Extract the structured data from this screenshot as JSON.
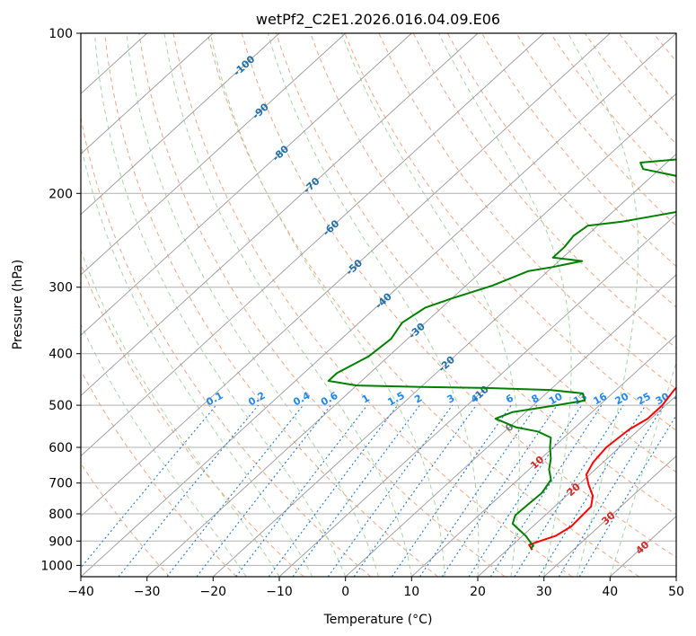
{
  "chart_data": {
    "type": "line",
    "title": "wetPf2_C2E1.2026.016.04.09.E06",
    "xlabel": "Temperature (°C)",
    "ylabel": "Pressure (hPa)",
    "xlim": [
      -40,
      50
    ],
    "ylim": [
      1050,
      100
    ],
    "x_ticks": [
      "−40",
      "−30",
      "−20",
      "−10",
      "0",
      "10",
      "20",
      "30",
      "40",
      "50"
    ],
    "x_tick_values": [
      -40,
      -30,
      -20,
      -10,
      0,
      10,
      20,
      30,
      40,
      50
    ],
    "y_ticks": [
      "100",
      "200",
      "300",
      "400",
      "500",
      "600",
      "700",
      "800",
      "900",
      "1000"
    ],
    "y_tick_values": [
      100,
      200,
      300,
      400,
      500,
      600,
      700,
      800,
      900,
      1000
    ],
    "colors": {
      "temperature": "#ff0000",
      "dewpoint": "#008000",
      "dry_adiabat": "#f4a582",
      "moist_adiabat": "#a6d5a6",
      "mixing_ratio": "#1f77d4",
      "isotherm": "#999999",
      "isobar": "#b0b0b0",
      "isotherm_label_neg": "#1f6fa8",
      "isotherm_label_pos": "#d62728",
      "isotherm_label_zero": "#777777",
      "mixing_label": "#2288ee"
    },
    "isotherm_labels": [
      "-100",
      "-90",
      "-80",
      "-70",
      "-60",
      "-50",
      "-40",
      "-30",
      "-20",
      "-10",
      "0",
      "10",
      "20",
      "30",
      "40"
    ],
    "isotherm_label_values": [
      -100,
      -90,
      -80,
      -70,
      -60,
      -50,
      -40,
      -30,
      -20,
      -10,
      0,
      10,
      20,
      30,
      40
    ],
    "mixing_ratio_labels": [
      "0.1",
      "0.2",
      "0.4",
      "0.6",
      "1",
      "1.5",
      "2",
      "3",
      "4",
      "6",
      "8",
      "10",
      "13",
      "16",
      "20",
      "25",
      "30",
      "36"
    ],
    "mixing_ratio_values": [
      0.1,
      0.2,
      0.4,
      0.6,
      1,
      1.5,
      2,
      3,
      4,
      6,
      8,
      10,
      13,
      16,
      20,
      25,
      30,
      36
    ],
    "series": [
      {
        "name": "Temperature",
        "points": [
          [
            23.8,
            935
          ],
          [
            22.5,
            915
          ],
          [
            23.5,
            900
          ],
          [
            25.0,
            880
          ],
          [
            25.8,
            845
          ],
          [
            25.5,
            775
          ],
          [
            24.0,
            740
          ],
          [
            21.5,
            705
          ],
          [
            19.5,
            675
          ],
          [
            18.5,
            640
          ],
          [
            18.0,
            600
          ],
          [
            18.5,
            555
          ],
          [
            19.5,
            530
          ],
          [
            19.5,
            500
          ],
          [
            18.8,
            470
          ],
          [
            18.5,
            450
          ],
          [
            17.5,
            430
          ],
          [
            17.2,
            415
          ],
          [
            17.3,
            400
          ],
          [
            15.8,
            370
          ],
          [
            14.5,
            355
          ],
          [
            11.7,
            335
          ],
          [
            8.0,
            315
          ],
          [
            5.5,
            295
          ],
          [
            3.0,
            265
          ],
          [
            1.5,
            245
          ],
          [
            -0.5,
            230
          ],
          [
            -2.3,
            210
          ],
          [
            -3.2,
            195
          ],
          [
            -5.0,
            165
          ],
          [
            -6.5,
            148
          ],
          [
            -8.7,
            135
          ],
          [
            -9.5,
            125
          ],
          [
            -10.1,
            120
          ]
        ]
      },
      {
        "name": "Dew point",
        "points": [
          [
            23.3,
            930
          ],
          [
            23.3,
            920
          ],
          [
            22.3,
            905
          ],
          [
            20.5,
            880
          ],
          [
            16.5,
            835
          ],
          [
            15.5,
            805
          ],
          [
            15.6,
            775
          ],
          [
            15.8,
            730
          ],
          [
            15.0,
            690
          ],
          [
            13.0,
            660
          ],
          [
            11.5,
            630
          ],
          [
            9.5,
            600
          ],
          [
            8.0,
            575
          ],
          [
            5.0,
            560
          ],
          [
            1.0,
            550
          ],
          [
            -3.5,
            530
          ],
          [
            -2.0,
            515
          ],
          [
            3.5,
            500
          ],
          [
            7.0,
            490
          ],
          [
            5.5,
            475
          ],
          [
            0.0,
            468
          ],
          [
            -10.0,
            464
          ],
          [
            -20.0,
            462
          ],
          [
            -30.0,
            459
          ],
          [
            -35.0,
            450
          ],
          [
            -35.0,
            435
          ],
          [
            -33.0,
            405
          ],
          [
            -32.5,
            375
          ],
          [
            -33.5,
            350
          ],
          [
            -32.5,
            328
          ],
          [
            -30.0,
            315
          ],
          [
            -26.0,
            298
          ],
          [
            -23.0,
            280
          ],
          [
            -20.0,
            275
          ],
          [
            -16.5,
            268
          ],
          [
            -21.5,
            264
          ],
          [
            -21.5,
            252
          ],
          [
            -22.0,
            240
          ],
          [
            -21.5,
            230
          ],
          [
            -17.0,
            226
          ],
          [
            -5.5,
            210
          ],
          [
            -5.8,
            200
          ],
          [
            -13.5,
            188
          ],
          [
            -22.5,
            180
          ],
          [
            -24.0,
            175
          ],
          [
            -13.5,
            170
          ],
          [
            -4.3,
            165
          ],
          [
            -3.3,
            155
          ],
          [
            -2.0,
            145
          ],
          [
            -1.5,
            137
          ],
          [
            -1.5,
            125
          ],
          [
            -2.0,
            115
          ],
          [
            -2.8,
            100
          ]
        ]
      }
    ]
  }
}
